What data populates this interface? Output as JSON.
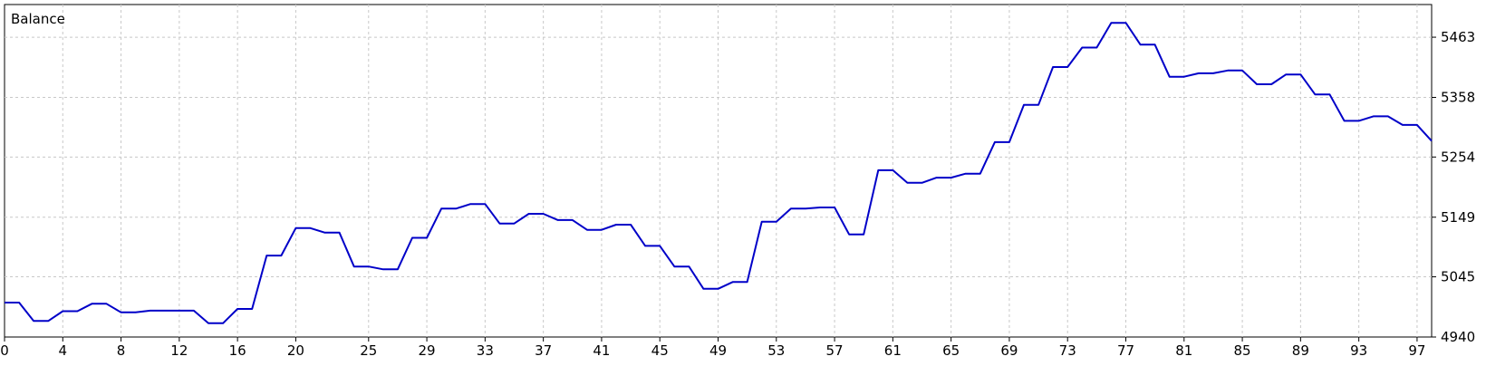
{
  "chart_data": {
    "type": "line",
    "title": "Balance",
    "xlabel": "",
    "ylabel": "",
    "x_ticks": [
      0,
      4,
      8,
      12,
      16,
      20,
      25,
      29,
      33,
      37,
      41,
      45,
      49,
      53,
      57,
      61,
      65,
      69,
      73,
      77,
      81,
      85,
      89,
      93,
      97
    ],
    "y_ticks": [
      4940,
      5045,
      5149,
      5254,
      5358,
      5463
    ],
    "xlim": [
      0,
      98
    ],
    "ylim": [
      4940,
      5520
    ],
    "grid": true,
    "line_color": "#0000c8",
    "series": [
      {
        "name": "",
        "points": [
          [
            0,
            5000
          ],
          [
            1,
            5000
          ],
          [
            2,
            4968
          ],
          [
            3,
            4968
          ],
          [
            4,
            4985
          ],
          [
            5,
            4985
          ],
          [
            6,
            4998
          ],
          [
            7,
            4998
          ],
          [
            8,
            4983
          ],
          [
            9,
            4983
          ],
          [
            10,
            4986
          ],
          [
            11,
            4986
          ],
          [
            12,
            4986
          ],
          [
            13,
            4986
          ],
          [
            14,
            4964
          ],
          [
            15,
            4964
          ],
          [
            16,
            4989
          ],
          [
            17,
            4989
          ],
          [
            18,
            5082
          ],
          [
            19,
            5082
          ],
          [
            20,
            5130
          ],
          [
            21,
            5130
          ],
          [
            22,
            5122
          ],
          [
            23,
            5122
          ],
          [
            24,
            5063
          ],
          [
            25,
            5063
          ],
          [
            26,
            5058
          ],
          [
            27,
            5058
          ],
          [
            28,
            5113
          ],
          [
            29,
            5113
          ],
          [
            30,
            5164
          ],
          [
            31,
            5164
          ],
          [
            32,
            5172
          ],
          [
            33,
            5172
          ],
          [
            34,
            5138
          ],
          [
            35,
            5138
          ],
          [
            36,
            5155
          ],
          [
            37,
            5155
          ],
          [
            38,
            5144
          ],
          [
            39,
            5144
          ],
          [
            40,
            5127
          ],
          [
            41,
            5127
          ],
          [
            42,
            5136
          ],
          [
            43,
            5136
          ],
          [
            44,
            5099
          ],
          [
            45,
            5099
          ],
          [
            46,
            5063
          ],
          [
            47,
            5063
          ],
          [
            48,
            5024
          ],
          [
            49,
            5024
          ],
          [
            50,
            5036
          ],
          [
            51,
            5036
          ],
          [
            52,
            5141
          ],
          [
            53,
            5141
          ],
          [
            54,
            5164
          ],
          [
            55,
            5164
          ],
          [
            56,
            5166
          ],
          [
            57,
            5166
          ],
          [
            58,
            5119
          ],
          [
            59,
            5119
          ],
          [
            60,
            5231
          ],
          [
            61,
            5231
          ],
          [
            62,
            5209
          ],
          [
            63,
            5209
          ],
          [
            64,
            5218
          ],
          [
            65,
            5218
          ],
          [
            66,
            5225
          ],
          [
            67,
            5225
          ],
          [
            68,
            5280
          ],
          [
            69,
            5280
          ],
          [
            70,
            5345
          ],
          [
            71,
            5345
          ],
          [
            72,
            5411
          ],
          [
            73,
            5411
          ],
          [
            74,
            5445
          ],
          [
            75,
            5445
          ],
          [
            76,
            5488
          ],
          [
            77,
            5488
          ],
          [
            78,
            5450
          ],
          [
            79,
            5450
          ],
          [
            80,
            5394
          ],
          [
            81,
            5394
          ],
          [
            82,
            5400
          ],
          [
            83,
            5400
          ],
          [
            84,
            5405
          ],
          [
            85,
            5405
          ],
          [
            86,
            5381
          ],
          [
            87,
            5381
          ],
          [
            88,
            5398
          ],
          [
            89,
            5398
          ],
          [
            90,
            5363
          ],
          [
            91,
            5363
          ],
          [
            92,
            5317
          ],
          [
            93,
            5317
          ],
          [
            94,
            5325
          ],
          [
            95,
            5325
          ],
          [
            96,
            5310
          ],
          [
            97,
            5310
          ],
          [
            98,
            5282
          ]
        ]
      }
    ]
  }
}
